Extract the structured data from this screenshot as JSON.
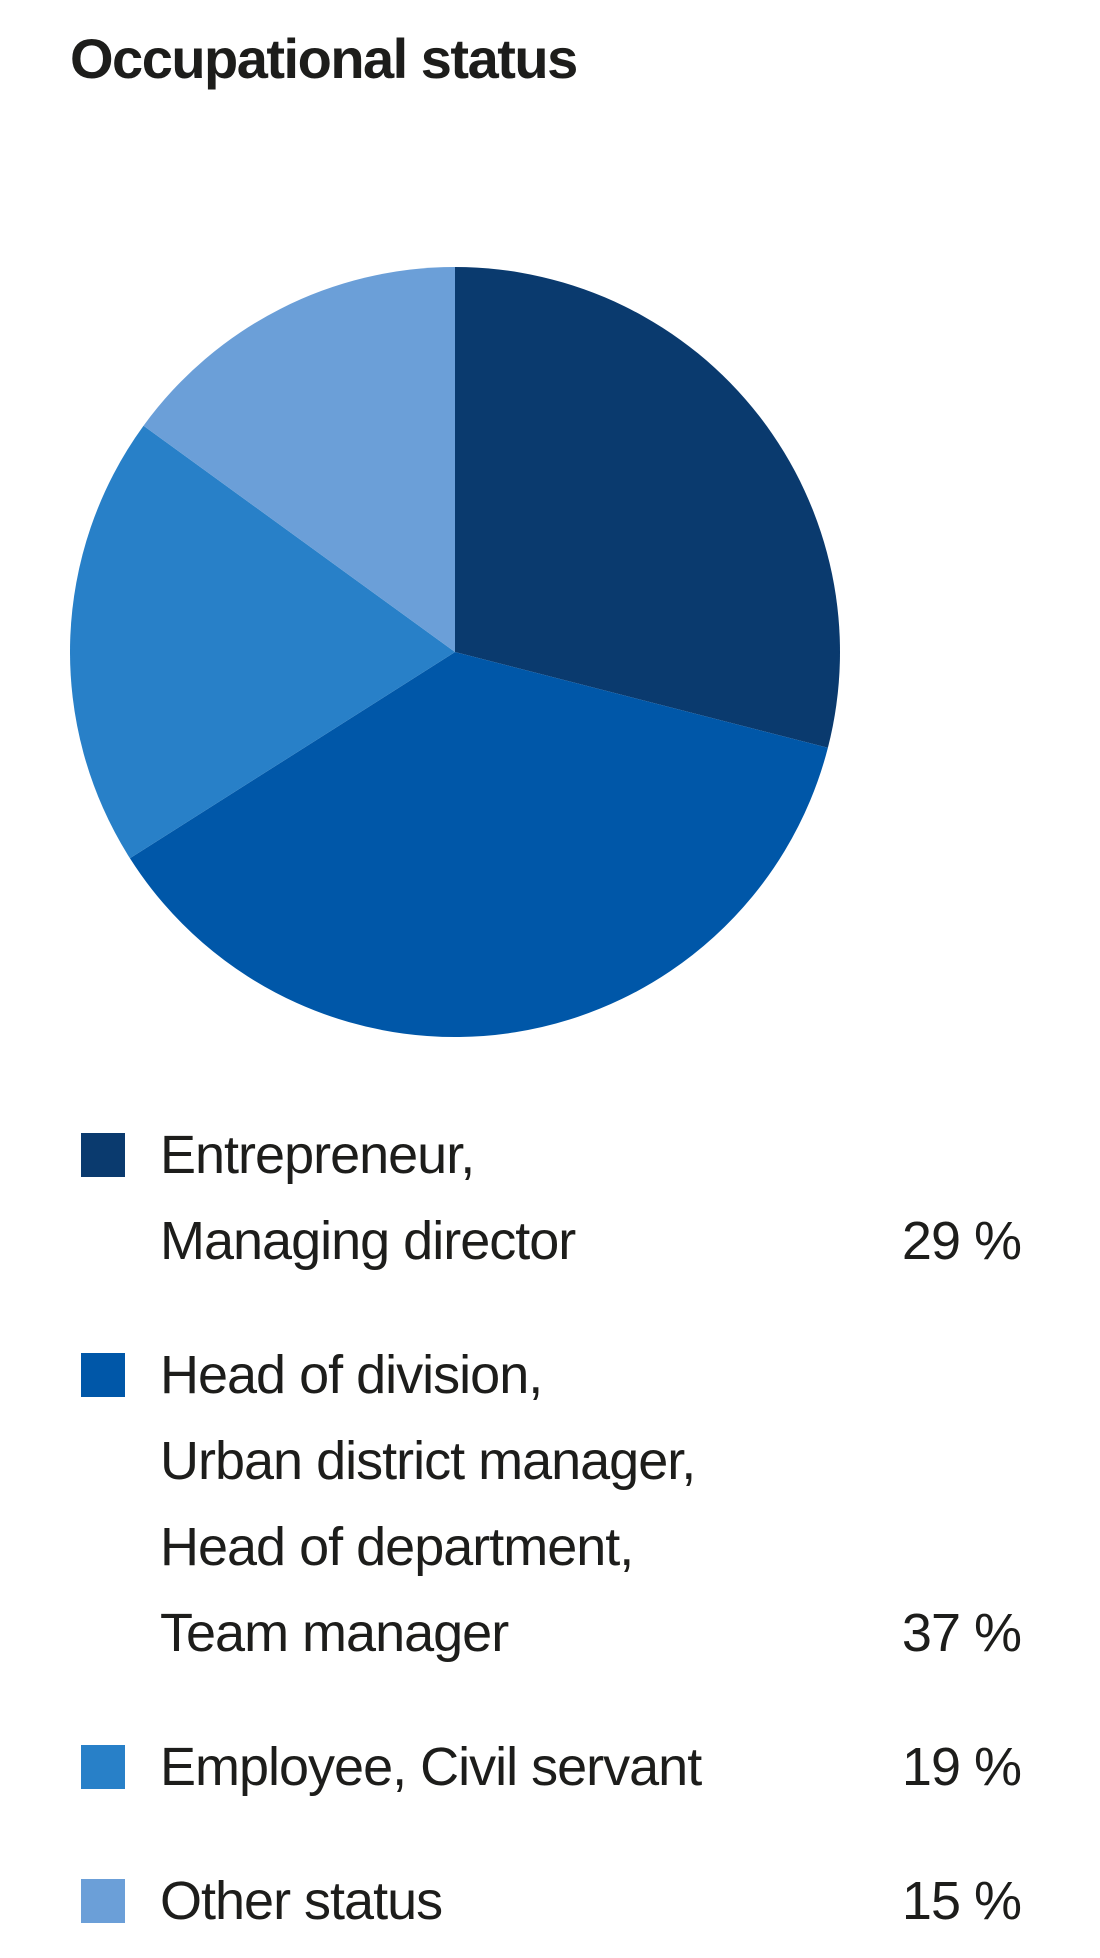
{
  "title": "Occupational status",
  "chart_data": {
    "type": "pie",
    "title": "Occupational status",
    "categories": [
      "Entrepreneur, Managing director",
      "Head of division, Urban district manager, Head of department, Team manager",
      "Employee, Civil servant",
      "Other status"
    ],
    "values": [
      29,
      37,
      19,
      15
    ],
    "unit": "%",
    "colors": [
      "#0a3a6e",
      "#0057a8",
      "#2880c8",
      "#6b9fd8"
    ],
    "start_angle": "12-oclock",
    "direction": "clockwise",
    "legend_position": "below",
    "data_labels": [
      "29 %",
      "37 %",
      "19 %",
      "15 %"
    ]
  },
  "legend": {
    "items": [
      {
        "lines": [
          "Entrepreneur,",
          "Managing director"
        ],
        "value": "29 %",
        "color": "#0a3a6e"
      },
      {
        "lines": [
          "Head of division,",
          "Urban district manager,",
          "Head of department,",
          "Team manager"
        ],
        "value": "37 %",
        "color": "#0057a8"
      },
      {
        "lines": [
          "Employee, Civil servant"
        ],
        "value": "19 %",
        "color": "#2880c8"
      },
      {
        "lines": [
          "Other status"
        ],
        "value": "15 %",
        "color": "#6b9fd8"
      }
    ]
  },
  "colors": {
    "text": "#1d1d1b",
    "background": "#ffffff"
  }
}
